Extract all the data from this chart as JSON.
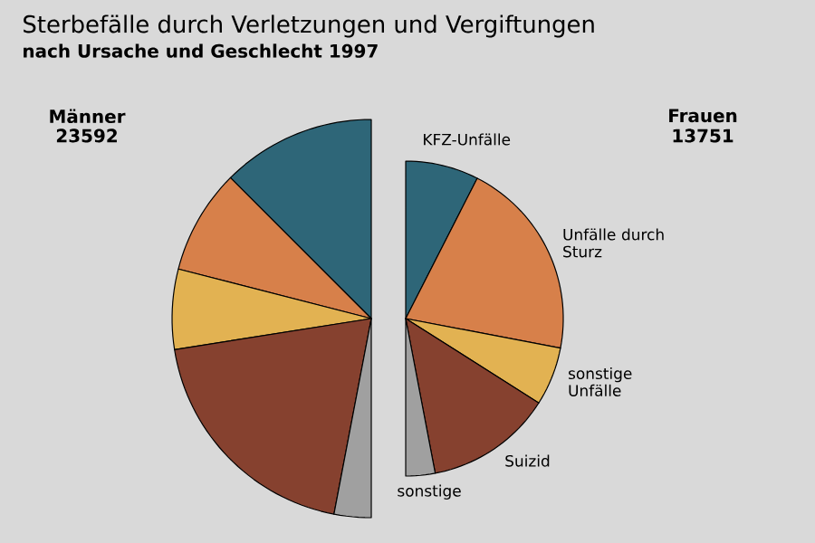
{
  "chart_data": [
    {
      "type": "pie",
      "title": "Sterbefälle durch Verletzungen und Vergiftungen",
      "subtitle": "nach Ursache und Geschlecht 1997",
      "annotations": [
        "Männer",
        "23592"
      ],
      "categories": [
        null,
        null,
        null,
        null,
        null
      ],
      "values": [
        25,
        17,
        13,
        39,
        6
      ],
      "colors": [
        "#2e6678",
        "#d7804a",
        "#e2b252",
        "#86412f",
        "#a0a0a0"
      ]
    },
    {
      "type": "pie",
      "annotations": [
        "Frauen",
        "13751"
      ],
      "categories": [
        "KFZ-Unfälle",
        "Unfälle durch Sturz",
        "sonstige Unfälle",
        "Suizid",
        "sonstige"
      ],
      "values": [
        15,
        41,
        12,
        26,
        6
      ],
      "colors": [
        "#2e6678",
        "#d7804a",
        "#e2b252",
        "#86412f",
        "#a0a0a0"
      ]
    }
  ]
}
